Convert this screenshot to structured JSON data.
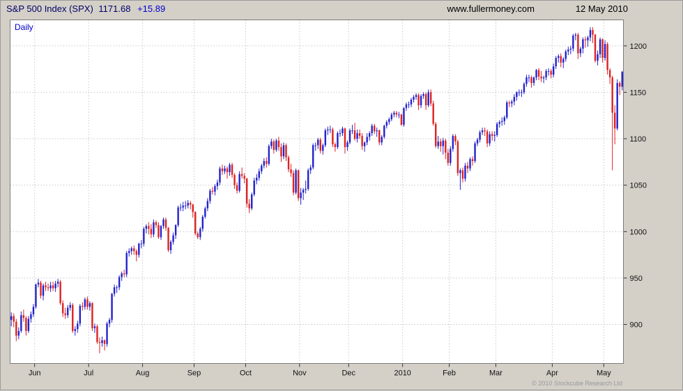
{
  "header": {
    "instrument": "S&P 500 Index (SPX)",
    "price": "1171.68",
    "change": "+15.89",
    "website": "www.fullermoney.com",
    "date": "12 May 2010"
  },
  "chart": {
    "timeframe_label": "Daily",
    "copyright": "© 2010 Stockcube Research Ltd",
    "colors": {
      "up": "#2222cc",
      "down": "#dd2222",
      "grid": "#c8c8c8",
      "axis_text": "#111111",
      "plot_bg": "#ffffff",
      "frame": "#7b7b7b"
    }
  },
  "chart_data": {
    "type": "candlestick",
    "title": "S&P 500 Index (SPX) Daily",
    "xlabel": "",
    "ylabel": "",
    "ylim": [
      858,
      1228
    ],
    "y_ticks": [
      900,
      950,
      1000,
      1050,
      1100,
      1150,
      1200
    ],
    "x_labels": [
      {
        "label": "Jun",
        "index": 10
      },
      {
        "label": "Jul",
        "index": 32
      },
      {
        "label": "Aug",
        "index": 54
      },
      {
        "label": "Sep",
        "index": 75
      },
      {
        "label": "Oct",
        "index": 96
      },
      {
        "label": "Nov",
        "index": 118
      },
      {
        "label": "Dec",
        "index": 138
      },
      {
        "label": "2010",
        "index": 160
      },
      {
        "label": "Feb",
        "index": 179
      },
      {
        "label": "Mar",
        "index": 198
      },
      {
        "label": "Apr",
        "index": 221
      },
      {
        "label": "May",
        "index": 242
      }
    ],
    "candles": [
      [
        905,
        913,
        898,
        909
      ],
      [
        909,
        912,
        897,
        903
      ],
      [
        903,
        906,
        882,
        888
      ],
      [
        888,
        897,
        884,
        893
      ],
      [
        893,
        914,
        891,
        910
      ],
      [
        910,
        916,
        903,
        907
      ],
      [
        907,
        909,
        888,
        893
      ],
      [
        893,
        909,
        891,
        906
      ],
      [
        906,
        914,
        902,
        911
      ],
      [
        911,
        922,
        908,
        919
      ],
      [
        919,
        944,
        917,
        943
      ],
      [
        943,
        949,
        940,
        945
      ],
      [
        945,
        947,
        928,
        931
      ],
      [
        931,
        944,
        926,
        942
      ],
      [
        942,
        946,
        936,
        940
      ],
      [
        940,
        944,
        936,
        939
      ],
      [
        939,
        946,
        935,
        942
      ],
      [
        942,
        946,
        936,
        939
      ],
      [
        939,
        947,
        935,
        944
      ],
      [
        944,
        949,
        940,
        946
      ],
      [
        946,
        948,
        921,
        923
      ],
      [
        923,
        926,
        908,
        912
      ],
      [
        912,
        918,
        906,
        910
      ],
      [
        910,
        921,
        907,
        918
      ],
      [
        918,
        924,
        915,
        921
      ],
      [
        921,
        923,
        891,
        893
      ],
      [
        893,
        898,
        888,
        895
      ],
      [
        895,
        904,
        891,
        901
      ],
      [
        901,
        922,
        898,
        920
      ],
      [
        920,
        924,
        915,
        919
      ],
      [
        919,
        929,
        916,
        927
      ],
      [
        927,
        930,
        916,
        919
      ],
      [
        919,
        925,
        915,
        923
      ],
      [
        923,
        924,
        893,
        896
      ],
      [
        896,
        901,
        891,
        898
      ],
      [
        898,
        900,
        879,
        881
      ],
      [
        881,
        886,
        869,
        880
      ],
      [
        880,
        887,
        876,
        883
      ],
      [
        883,
        884,
        872,
        879
      ],
      [
        879,
        903,
        876,
        901
      ],
      [
        901,
        907,
        897,
        905
      ],
      [
        905,
        934,
        902,
        933
      ],
      [
        933,
        943,
        930,
        940
      ],
      [
        940,
        942,
        934,
        940
      ],
      [
        940,
        953,
        937,
        951
      ],
      [
        951,
        957,
        947,
        955
      ],
      [
        955,
        959,
        951,
        954
      ],
      [
        954,
        979,
        951,
        977
      ],
      [
        977,
        982,
        973,
        979
      ],
      [
        979,
        984,
        975,
        982
      ],
      [
        982,
        985,
        975,
        979
      ],
      [
        979,
        981,
        968,
        975
      ],
      [
        975,
        988,
        972,
        987
      ],
      [
        987,
        991,
        982,
        987
      ],
      [
        987,
        1005,
        984,
        1003
      ],
      [
        1003,
        1008,
        998,
        1006
      ],
      [
        1006,
        1010,
        997,
        1003
      ],
      [
        1003,
        1008,
        993,
        997
      ],
      [
        997,
        1013,
        994,
        1010
      ],
      [
        1010,
        1012,
        1004,
        1007
      ],
      [
        1007,
        1010,
        992,
        994
      ],
      [
        994,
        1007,
        991,
        1006
      ],
      [
        1006,
        1015,
        1003,
        1013
      ],
      [
        1013,
        1015,
        1001,
        1004
      ],
      [
        1004,
        1005,
        978,
        980
      ],
      [
        980,
        991,
        976,
        989
      ],
      [
        989,
        999,
        986,
        996
      ],
      [
        996,
        1008,
        992,
        1007
      ],
      [
        1007,
        1028,
        1005,
        1026
      ],
      [
        1026,
        1030,
        1022,
        1026
      ],
      [
        1026,
        1032,
        1022,
        1028
      ],
      [
        1028,
        1033,
        1024,
        1028
      ],
      [
        1028,
        1034,
        1025,
        1031
      ],
      [
        1031,
        1033,
        1024,
        1029
      ],
      [
        1029,
        1030,
        1015,
        1021
      ],
      [
        1021,
        1022,
        996,
        998
      ],
      [
        998,
        1000,
        992,
        994
      ],
      [
        994,
        1005,
        991,
        1003
      ],
      [
        1003,
        1018,
        1000,
        1016
      ],
      [
        1016,
        1027,
        1014,
        1025
      ],
      [
        1025,
        1036,
        1022,
        1033
      ],
      [
        1033,
        1046,
        1030,
        1044
      ],
      [
        1044,
        1048,
        1040,
        1043
      ],
      [
        1043,
        1051,
        1039,
        1049
      ],
      [
        1049,
        1056,
        1045,
        1053
      ],
      [
        1053,
        1070,
        1050,
        1068
      ],
      [
        1068,
        1072,
        1061,
        1065
      ],
      [
        1065,
        1071,
        1062,
        1068
      ],
      [
        1068,
        1070,
        1057,
        1064
      ],
      [
        1064,
        1074,
        1060,
        1072
      ],
      [
        1072,
        1074,
        1058,
        1061
      ],
      [
        1061,
        1063,
        1046,
        1050
      ],
      [
        1050,
        1053,
        1041,
        1044
      ],
      [
        1044,
        1065,
        1042,
        1062
      ],
      [
        1062,
        1069,
        1057,
        1060
      ],
      [
        1060,
        1063,
        1052,
        1057
      ],
      [
        1057,
        1058,
        1026,
        1030
      ],
      [
        1030,
        1035,
        1020,
        1025
      ],
      [
        1025,
        1042,
        1023,
        1040
      ],
      [
        1040,
        1058,
        1038,
        1055
      ],
      [
        1055,
        1062,
        1051,
        1058
      ],
      [
        1058,
        1068,
        1055,
        1065
      ],
      [
        1065,
        1073,
        1062,
        1071
      ],
      [
        1071,
        1079,
        1068,
        1076
      ],
      [
        1076,
        1080,
        1069,
        1073
      ],
      [
        1073,
        1094,
        1071,
        1092
      ],
      [
        1092,
        1100,
        1089,
        1097
      ],
      [
        1097,
        1099,
        1084,
        1088
      ],
      [
        1088,
        1100,
        1086,
        1098
      ],
      [
        1098,
        1102,
        1087,
        1091
      ],
      [
        1091,
        1095,
        1075,
        1081
      ],
      [
        1081,
        1096,
        1078,
        1093
      ],
      [
        1093,
        1095,
        1076,
        1080
      ],
      [
        1080,
        1082,
        1064,
        1067
      ],
      [
        1067,
        1073,
        1059,
        1063
      ],
      [
        1063,
        1066,
        1039,
        1042
      ],
      [
        1042,
        1068,
        1040,
        1066
      ],
      [
        1066,
        1067,
        1033,
        1036
      ],
      [
        1036,
        1047,
        1029,
        1042
      ],
      [
        1042,
        1047,
        1034,
        1045
      ],
      [
        1045,
        1055,
        1041,
        1046
      ],
      [
        1046,
        1068,
        1044,
        1066
      ],
      [
        1066,
        1072,
        1062,
        1069
      ],
      [
        1069,
        1095,
        1067,
        1093
      ],
      [
        1093,
        1096,
        1087,
        1093
      ],
      [
        1093,
        1101,
        1089,
        1099
      ],
      [
        1099,
        1101,
        1084,
        1087
      ],
      [
        1087,
        1095,
        1083,
        1093
      ],
      [
        1093,
        1111,
        1091,
        1109
      ],
      [
        1109,
        1113,
        1104,
        1110
      ],
      [
        1110,
        1114,
        1106,
        1110
      ],
      [
        1110,
        1112,
        1091,
        1094
      ],
      [
        1094,
        1096,
        1086,
        1091
      ],
      [
        1091,
        1108,
        1089,
        1106
      ],
      [
        1106,
        1110,
        1102,
        1106
      ],
      [
        1106,
        1113,
        1103,
        1111
      ],
      [
        1111,
        1112,
        1084,
        1091
      ],
      [
        1091,
        1098,
        1087,
        1096
      ],
      [
        1096,
        1111,
        1094,
        1109
      ],
      [
        1109,
        1115,
        1105,
        1109
      ],
      [
        1109,
        1117,
        1098,
        1100
      ],
      [
        1100,
        1110,
        1096,
        1106
      ],
      [
        1106,
        1110,
        1100,
        1103
      ],
      [
        1103,
        1106,
        1088,
        1092
      ],
      [
        1092,
        1097,
        1086,
        1096
      ],
      [
        1096,
        1106,
        1093,
        1102
      ],
      [
        1102,
        1108,
        1098,
        1106
      ],
      [
        1106,
        1116,
        1103,
        1114
      ],
      [
        1114,
        1116,
        1105,
        1108
      ],
      [
        1108,
        1112,
        1102,
        1109
      ],
      [
        1109,
        1110,
        1093,
        1096
      ],
      [
        1096,
        1104,
        1093,
        1102
      ],
      [
        1102,
        1115,
        1100,
        1114
      ],
      [
        1114,
        1120,
        1111,
        1118
      ],
      [
        1118,
        1123,
        1115,
        1121
      ],
      [
        1121,
        1128,
        1119,
        1126
      ],
      [
        1126,
        1130,
        1123,
        1128
      ],
      [
        1128,
        1130,
        1123,
        1126
      ],
      [
        1126,
        1129,
        1122,
        1126
      ],
      [
        1126,
        1127,
        1114,
        1115
      ],
      [
        1115,
        1134,
        1113,
        1133
      ],
      [
        1133,
        1139,
        1130,
        1137
      ],
      [
        1137,
        1140,
        1133,
        1137
      ],
      [
        1137,
        1144,
        1134,
        1142
      ],
      [
        1142,
        1147,
        1139,
        1145
      ],
      [
        1145,
        1149,
        1142,
        1147
      ],
      [
        1147,
        1149,
        1131,
        1136
      ],
      [
        1136,
        1148,
        1133,
        1146
      ],
      [
        1146,
        1150,
        1143,
        1148
      ],
      [
        1148,
        1150,
        1131,
        1136
      ],
      [
        1136,
        1153,
        1134,
        1150
      ],
      [
        1150,
        1153,
        1135,
        1138
      ],
      [
        1138,
        1141,
        1114,
        1116
      ],
      [
        1116,
        1118,
        1090,
        1092
      ],
      [
        1092,
        1103,
        1089,
        1097
      ],
      [
        1097,
        1100,
        1086,
        1092
      ],
      [
        1092,
        1101,
        1083,
        1098
      ],
      [
        1098,
        1100,
        1078,
        1085
      ],
      [
        1085,
        1089,
        1071,
        1074
      ],
      [
        1074,
        1092,
        1071,
        1089
      ],
      [
        1089,
        1105,
        1086,
        1103
      ],
      [
        1103,
        1105,
        1093,
        1097
      ],
      [
        1097,
        1099,
        1060,
        1063
      ],
      [
        1063,
        1068,
        1045,
        1066
      ],
      [
        1066,
        1069,
        1053,
        1057
      ],
      [
        1057,
        1074,
        1054,
        1071
      ],
      [
        1071,
        1075,
        1063,
        1068
      ],
      [
        1068,
        1080,
        1065,
        1078
      ],
      [
        1078,
        1081,
        1071,
        1076
      ],
      [
        1076,
        1097,
        1074,
        1095
      ],
      [
        1095,
        1101,
        1092,
        1099
      ],
      [
        1099,
        1109,
        1096,
        1107
      ],
      [
        1107,
        1112,
        1104,
        1109
      ],
      [
        1109,
        1112,
        1103,
        1108
      ],
      [
        1108,
        1110,
        1091,
        1095
      ],
      [
        1095,
        1108,
        1092,
        1105
      ],
      [
        1105,
        1108,
        1098,
        1103
      ],
      [
        1103,
        1108,
        1097,
        1104
      ],
      [
        1104,
        1118,
        1102,
        1116
      ],
      [
        1116,
        1120,
        1112,
        1118
      ],
      [
        1118,
        1123,
        1114,
        1119
      ],
      [
        1119,
        1125,
        1115,
        1123
      ],
      [
        1123,
        1141,
        1121,
        1139
      ],
      [
        1139,
        1141,
        1134,
        1138
      ],
      [
        1138,
        1142,
        1134,
        1140
      ],
      [
        1140,
        1148,
        1136,
        1145
      ],
      [
        1145,
        1151,
        1141,
        1150
      ],
      [
        1150,
        1153,
        1146,
        1150
      ],
      [
        1150,
        1153,
        1145,
        1150
      ],
      [
        1150,
        1161,
        1148,
        1159
      ],
      [
        1159,
        1169,
        1156,
        1166
      ],
      [
        1166,
        1169,
        1161,
        1166
      ],
      [
        1166,
        1168,
        1155,
        1160
      ],
      [
        1160,
        1167,
        1157,
        1166
      ],
      [
        1166,
        1175,
        1163,
        1174
      ],
      [
        1174,
        1176,
        1163,
        1167
      ],
      [
        1167,
        1173,
        1161,
        1165
      ],
      [
        1165,
        1168,
        1160,
        1166
      ],
      [
        1166,
        1175,
        1163,
        1173
      ],
      [
        1173,
        1176,
        1168,
        1173
      ],
      [
        1173,
        1175,
        1165,
        1169
      ],
      [
        1169,
        1181,
        1166,
        1178
      ],
      [
        1178,
        1189,
        1175,
        1187
      ],
      [
        1187,
        1191,
        1182,
        1189
      ],
      [
        1189,
        1192,
        1177,
        1182
      ],
      [
        1182,
        1188,
        1176,
        1186
      ],
      [
        1186,
        1196,
        1183,
        1194
      ],
      [
        1194,
        1199,
        1190,
        1196
      ],
      [
        1196,
        1200,
        1191,
        1197
      ],
      [
        1197,
        1213,
        1194,
        1211
      ],
      [
        1211,
        1214,
        1206,
        1212
      ],
      [
        1212,
        1214,
        1186,
        1192
      ],
      [
        1192,
        1199,
        1188,
        1197
      ],
      [
        1197,
        1209,
        1192,
        1207
      ],
      [
        1207,
        1210,
        1198,
        1206
      ],
      [
        1206,
        1211,
        1199,
        1209
      ],
      [
        1209,
        1220,
        1205,
        1217
      ],
      [
        1217,
        1220,
        1203,
        1212
      ],
      [
        1212,
        1213,
        1182,
        1184
      ],
      [
        1184,
        1195,
        1179,
        1191
      ],
      [
        1191,
        1209,
        1187,
        1207
      ],
      [
        1207,
        1208,
        1182,
        1187
      ],
      [
        1187,
        1206,
        1184,
        1202
      ],
      [
        1202,
        1204,
        1169,
        1174
      ],
      [
        1174,
        1176,
        1159,
        1166
      ],
      [
        1166,
        1168,
        1066,
        1128
      ],
      [
        1128,
        1136,
        1094,
        1111
      ],
      [
        1111,
        1164,
        1109,
        1160
      ],
      [
        1160,
        1162,
        1147,
        1156
      ],
      [
        1156,
        1173,
        1152,
        1172
      ]
    ]
  }
}
